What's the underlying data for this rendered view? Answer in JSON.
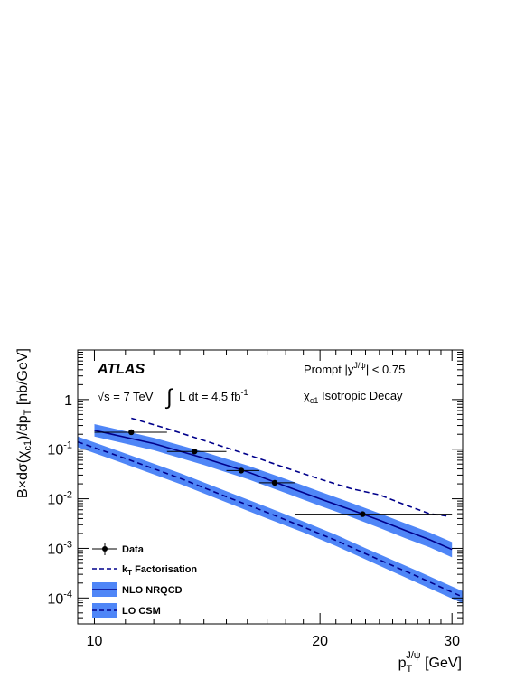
{
  "chart_data": {
    "type": "line",
    "xlabel": "p_T^{J/ψ} [GeV]",
    "ylabel": "B×dσ(χ_c1)/dp_T [nb/GeV]",
    "xscale": "log",
    "yscale": "log",
    "xlim": [
      9.5,
      31
    ],
    "ylim": [
      3e-05,
      10
    ],
    "x_ticks": [
      10,
      20,
      30
    ],
    "x_tick_labels": [
      "10",
      "20",
      "30"
    ],
    "y_ticks": [
      0.0001,
      0.001,
      0.01,
      0.1,
      1
    ],
    "y_tick_labels": [
      {
        "base": "10",
        "exp": "-4"
      },
      {
        "base": "10",
        "exp": "-3"
      },
      {
        "base": "10",
        "exp": "-2"
      },
      {
        "base": "10",
        "exp": "-1"
      },
      {
        "base": "1",
        "exp": ""
      }
    ],
    "annotations": {
      "experiment": "ATLAS",
      "energy": "√s = 7 TeV",
      "lumi_int": "∫",
      "lumi": "L dt = 4.5 fb",
      "lumi_exp": "-1",
      "selection_a": "Prompt  |y",
      "selection_sup": "J/ψ",
      "selection_b": "| < 0.75",
      "decay_chi": "χ",
      "decay_sub": "c1",
      "decay_text": " Isotropic Decay"
    },
    "legend": {
      "placement": "bottom-left",
      "entries": [
        {
          "label": "Data"
        },
        {
          "label": "k",
          "sub": "T",
          "rest": " Factorisation"
        },
        {
          "label": "NLO NRQCD"
        },
        {
          "label": "LO CSM"
        }
      ]
    },
    "colors": {
      "band": "#4f86f7",
      "line": "#00008b",
      "data": "#000000",
      "frame": "#000000"
    },
    "series": [
      {
        "name": "Data",
        "style": "points-xerr",
        "points": [
          {
            "x": 11.2,
            "xlo": 10.0,
            "xhi": 12.5,
            "y": 0.22
          },
          {
            "x": 13.6,
            "xlo": 12.5,
            "xhi": 15.0,
            "y": 0.09
          },
          {
            "x": 15.7,
            "xlo": 15.0,
            "xhi": 16.6,
            "y": 0.037
          },
          {
            "x": 17.4,
            "xlo": 16.6,
            "xhi": 18.5,
            "y": 0.021
          },
          {
            "x": 22.8,
            "xlo": 18.5,
            "xhi": 30.0,
            "y": 0.0049
          }
        ]
      },
      {
        "name": "k_T Factorisation",
        "style": "dashed",
        "x": [
          11.2,
          12.5,
          14,
          16,
          18,
          20,
          22,
          24,
          26,
          28,
          29.5
        ],
        "y": [
          0.42,
          0.26,
          0.15,
          0.078,
          0.042,
          0.025,
          0.016,
          0.012,
          0.0075,
          0.005,
          0.0045
        ]
      },
      {
        "name": "NLO NRQCD",
        "style": "solid-band",
        "x": [
          10,
          12,
          14,
          16,
          18,
          20,
          22,
          24,
          26,
          28,
          30
        ],
        "y": [
          0.24,
          0.13,
          0.066,
          0.035,
          0.018,
          0.01,
          0.006,
          0.0037,
          0.0023,
          0.0015,
          0.00095
        ],
        "y_lo": [
          0.18,
          0.095,
          0.048,
          0.025,
          0.013,
          0.0072,
          0.0043,
          0.0026,
          0.0016,
          0.00105,
          0.00066
        ],
        "y_hi": [
          0.32,
          0.17,
          0.088,
          0.047,
          0.025,
          0.014,
          0.0083,
          0.0051,
          0.0032,
          0.0021,
          0.00134
        ]
      },
      {
        "name": "LO CSM",
        "style": "dashed-band",
        "x": [
          9.5,
          11,
          13,
          15,
          17,
          19,
          21,
          23,
          25,
          27,
          29,
          31
        ],
        "y": [
          0.14,
          0.065,
          0.026,
          0.011,
          0.0053,
          0.0027,
          0.00145,
          0.00078,
          0.00045,
          0.00027,
          0.000165,
          0.000105
        ],
        "y_lo": [
          0.11,
          0.05,
          0.02,
          0.0085,
          0.004,
          0.0021,
          0.00112,
          0.0006,
          0.00034,
          0.0002,
          0.000123,
          7.8e-05
        ],
        "y_hi": [
          0.18,
          0.082,
          0.033,
          0.0142,
          0.0068,
          0.0035,
          0.00188,
          0.00101,
          0.00058,
          0.00035,
          0.000215,
          0.000137
        ]
      }
    ]
  }
}
